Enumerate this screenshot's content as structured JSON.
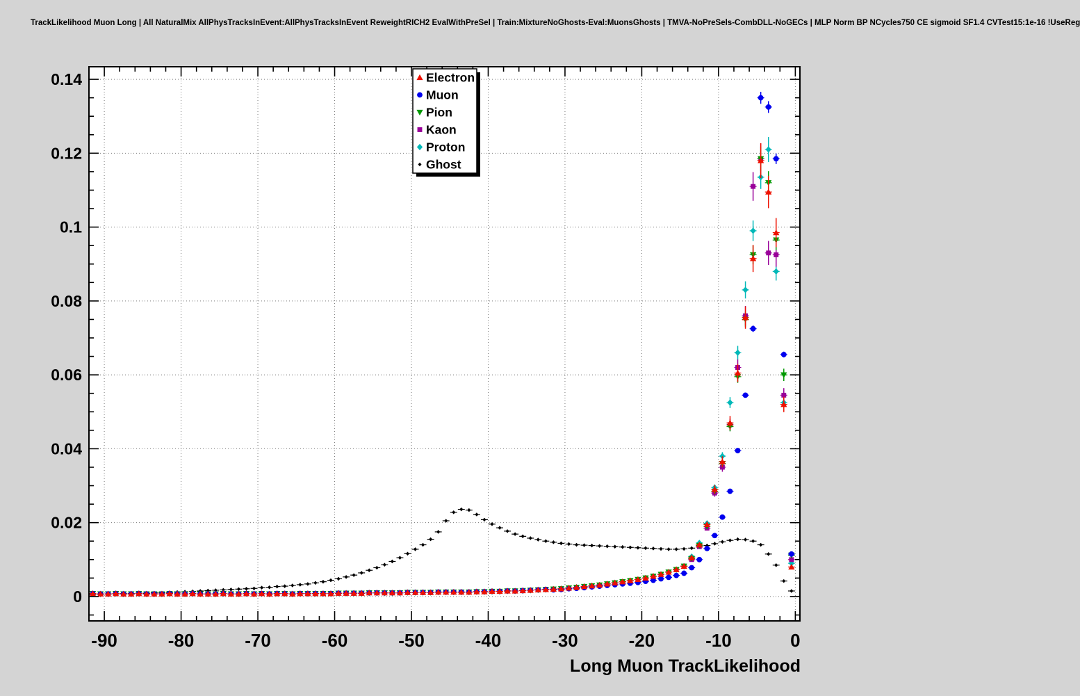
{
  "page": {
    "title": "TrackLikelihood Muon Long | All NaturalMix AllPhysTracksInEvent:AllPhysTracksInEvent ReweightRICH2 EvalWithPreSel | Train:MixtureNoGhosts-Eval:MuonsGhosts | TMVA-NoPreSels-CombDLL-NoGECs | MLP Norm BP NCycles750 CE sigmoid SF1.4 CVTest15:1e-16 !UseReg",
    "background": "#d4d4d4"
  },
  "chart_data": {
    "type": "scatter",
    "title": "TrackLikelihood Muon Long | All NaturalMix AllPhysTracksInEvent:AllPhysTracksInEvent ReweightRICH2 EvalWithPreSel | Train:MixtureNoGhosts-Eval:MuonsGhosts | TMVA-NoPreSels-CombDLL-NoGECs | MLP Norm BP NCycles750 CE sigmoid SF1.4 CVTest15:1e-16 !UseReg",
    "xlabel": "Long Muon TrackLikelihood",
    "ylabel": "",
    "xlim": [
      -92,
      0.6
    ],
    "ylim": [
      -0.0066,
      0.1434
    ],
    "grid": true,
    "legend_position": "top-center",
    "x_ticks": [
      -90,
      -80,
      -70,
      -60,
      -50,
      -40,
      -30,
      -20,
      -10,
      0
    ],
    "x_tick_labels": [
      "-90",
      "-80",
      "-70",
      "-60",
      "-50",
      "-40",
      "-30",
      "-20",
      "-10",
      "0"
    ],
    "y_ticks": [
      0,
      0.02,
      0.04,
      0.06,
      0.08,
      0.1,
      0.12,
      0.14
    ],
    "y_tick_labels": [
      "0",
      "0.02",
      "0.04",
      "0.06",
      "0.08",
      "0.1",
      "0.12",
      "0.14"
    ],
    "x_minor_step": 2,
    "y_minor_step": 0.005,
    "x_start": -91.5,
    "x_step": 1,
    "bin_half_width": 0.45,
    "error_model": {
      "min": 0.0002
    },
    "series": [
      {
        "name": "Electron",
        "marker": "triangle-up",
        "color": "#ee1100",
        "err_rel": 0.04,
        "values": [
          0.0008,
          0.0007,
          0.0007,
          0.0008,
          0.0007,
          0.0007,
          0.0008,
          0.0007,
          0.0007,
          0.0007,
          0.0008,
          0.0007,
          0.0007,
          0.0008,
          0.0007,
          0.0007,
          0.0007,
          0.0008,
          0.0007,
          0.0007,
          0.0008,
          0.0007,
          0.0008,
          0.0007,
          0.0008,
          0.0008,
          0.0007,
          0.0008,
          0.0008,
          0.0008,
          0.0008,
          0.0008,
          0.0009,
          0.0009,
          0.0009,
          0.0009,
          0.001,
          0.001,
          0.001,
          0.001,
          0.001,
          0.0011,
          0.0011,
          0.0011,
          0.0011,
          0.0012,
          0.0012,
          0.0012,
          0.0012,
          0.0012,
          0.0013,
          0.0013,
          0.0014,
          0.0014,
          0.0015,
          0.0015,
          0.0016,
          0.0017,
          0.0018,
          0.0019,
          0.002,
          0.0021,
          0.0023,
          0.0025,
          0.0027,
          0.0029,
          0.0031,
          0.0034,
          0.0037,
          0.004,
          0.0043,
          0.0046,
          0.005,
          0.0055,
          0.006,
          0.0066,
          0.0073,
          0.0082,
          0.0105,
          0.014,
          0.0195,
          0.029,
          0.0365,
          0.047,
          0.0605,
          0.0755,
          0.0915,
          0.118,
          0.1095,
          0.0985,
          0.052,
          0.008
        ]
      },
      {
        "name": "Muon",
        "marker": "circle",
        "color": "#0000ee",
        "err_rel": 0.012,
        "values": [
          0.0008,
          0.0007,
          0.0007,
          0.0008,
          0.0007,
          0.0007,
          0.0008,
          0.0007,
          0.0007,
          0.0007,
          0.0008,
          0.0007,
          0.0007,
          0.0008,
          0.0007,
          0.0007,
          0.0007,
          0.0008,
          0.0007,
          0.0007,
          0.0008,
          0.0007,
          0.0008,
          0.0007,
          0.0008,
          0.0008,
          0.0007,
          0.0008,
          0.0008,
          0.0008,
          0.0008,
          0.0008,
          0.0009,
          0.0009,
          0.0009,
          0.0009,
          0.001,
          0.001,
          0.001,
          0.001,
          0.001,
          0.0011,
          0.0011,
          0.0011,
          0.0011,
          0.0012,
          0.0012,
          0.0012,
          0.0012,
          0.0012,
          0.0013,
          0.0013,
          0.0014,
          0.0014,
          0.0015,
          0.0015,
          0.0016,
          0.0017,
          0.0018,
          0.0019,
          0.0018,
          0.0019,
          0.0021,
          0.0022,
          0.0024,
          0.0026,
          0.0028,
          0.003,
          0.0032,
          0.0034,
          0.0036,
          0.0038,
          0.0041,
          0.0044,
          0.0048,
          0.0052,
          0.0057,
          0.0063,
          0.0078,
          0.01,
          0.013,
          0.0165,
          0.0215,
          0.0285,
          0.0395,
          0.0545,
          0.0725,
          0.135,
          0.1325,
          0.1185,
          0.0655,
          0.0115
        ]
      },
      {
        "name": "Pion",
        "marker": "triangle-down",
        "color": "#009900",
        "err_rel": 0.028,
        "values": [
          0.0008,
          0.0007,
          0.0007,
          0.0008,
          0.0007,
          0.0007,
          0.0008,
          0.0007,
          0.0007,
          0.0007,
          0.0008,
          0.0007,
          0.0007,
          0.0008,
          0.0007,
          0.0007,
          0.0007,
          0.0008,
          0.0007,
          0.0007,
          0.0008,
          0.0007,
          0.0008,
          0.0007,
          0.0008,
          0.0008,
          0.0007,
          0.0008,
          0.0008,
          0.0008,
          0.0008,
          0.0008,
          0.0009,
          0.0009,
          0.0009,
          0.0009,
          0.001,
          0.001,
          0.001,
          0.001,
          0.001,
          0.0011,
          0.0011,
          0.0011,
          0.0011,
          0.0012,
          0.0012,
          0.0012,
          0.0012,
          0.0012,
          0.0013,
          0.0013,
          0.0014,
          0.0014,
          0.0015,
          0.0015,
          0.0016,
          0.0017,
          0.0018,
          0.0019,
          0.002,
          0.0021,
          0.0023,
          0.0025,
          0.0027,
          0.0029,
          0.0031,
          0.0034,
          0.0037,
          0.004,
          0.0043,
          0.0046,
          0.005,
          0.0055,
          0.006,
          0.0066,
          0.0073,
          0.0082,
          0.0103,
          0.0138,
          0.019,
          0.0285,
          0.036,
          0.046,
          0.0595,
          0.075,
          0.0925,
          0.1185,
          0.112,
          0.0965,
          0.06,
          0.0112
        ]
      },
      {
        "name": "Kaon",
        "marker": "square",
        "color": "#990099",
        "err_rel": 0.035,
        "values": [
          0.0008,
          0.0007,
          0.0007,
          0.0008,
          0.0007,
          0.0007,
          0.0008,
          0.0007,
          0.0007,
          0.0007,
          0.0008,
          0.0007,
          0.0007,
          0.0008,
          0.0007,
          0.0007,
          0.0007,
          0.0008,
          0.0007,
          0.0007,
          0.0008,
          0.0007,
          0.0008,
          0.0007,
          0.0008,
          0.0008,
          0.0007,
          0.0008,
          0.0008,
          0.0008,
          0.0008,
          0.0008,
          0.0009,
          0.0009,
          0.0009,
          0.0009,
          0.001,
          0.001,
          0.001,
          0.001,
          0.001,
          0.0011,
          0.0011,
          0.0011,
          0.0011,
          0.0012,
          0.0012,
          0.0012,
          0.0012,
          0.0012,
          0.0013,
          0.0013,
          0.0014,
          0.0014,
          0.0015,
          0.0015,
          0.0016,
          0.0017,
          0.0018,
          0.0019,
          0.002,
          0.0021,
          0.0023,
          0.0025,
          0.0027,
          0.0029,
          0.0031,
          0.0034,
          0.0037,
          0.004,
          0.0043,
          0.0046,
          0.005,
          0.0055,
          0.006,
          0.0066,
          0.0073,
          0.0082,
          0.01,
          0.0135,
          0.0185,
          0.028,
          0.035,
          0.0465,
          0.062,
          0.076,
          0.111,
          0.1185,
          0.093,
          0.0925,
          0.0545,
          0.01
        ]
      },
      {
        "name": "Proton",
        "marker": "diamond",
        "color": "#00b8b8",
        "err_rel": 0.028,
        "values": [
          0.0008,
          0.0007,
          0.0007,
          0.0008,
          0.0007,
          0.0007,
          0.0008,
          0.0007,
          0.0007,
          0.0007,
          0.0008,
          0.0007,
          0.0007,
          0.0008,
          0.0007,
          0.0007,
          0.0007,
          0.0008,
          0.0007,
          0.0007,
          0.0008,
          0.0007,
          0.0008,
          0.0007,
          0.0008,
          0.0008,
          0.0007,
          0.0008,
          0.0008,
          0.0008,
          0.0008,
          0.0008,
          0.0009,
          0.0009,
          0.0009,
          0.0009,
          0.001,
          0.001,
          0.001,
          0.001,
          0.001,
          0.0011,
          0.0011,
          0.0011,
          0.0011,
          0.0012,
          0.0012,
          0.0012,
          0.0012,
          0.0012,
          0.0013,
          0.0013,
          0.0014,
          0.0014,
          0.0015,
          0.0015,
          0.0016,
          0.0017,
          0.0018,
          0.0019,
          0.002,
          0.0021,
          0.0023,
          0.0025,
          0.0027,
          0.0029,
          0.0031,
          0.0034,
          0.0037,
          0.004,
          0.0043,
          0.0046,
          0.005,
          0.0055,
          0.006,
          0.0066,
          0.0073,
          0.0082,
          0.0108,
          0.0145,
          0.0198,
          0.0295,
          0.038,
          0.0525,
          0.066,
          0.083,
          0.099,
          0.1135,
          0.121,
          0.088,
          0.0525,
          0.009
        ]
      },
      {
        "name": "Ghost",
        "marker": "small-diamond",
        "color": "#000000",
        "err_rel": 0.01,
        "values": [
          0.0006,
          0.0006,
          0.0007,
          0.0007,
          0.0008,
          0.0008,
          0.0009,
          0.0009,
          0.001,
          0.001,
          0.0011,
          0.0012,
          0.0013,
          0.0014,
          0.0015,
          0.0016,
          0.0017,
          0.0018,
          0.0019,
          0.002,
          0.0021,
          0.0022,
          0.0024,
          0.0025,
          0.0027,
          0.0028,
          0.003,
          0.0032,
          0.0034,
          0.0037,
          0.004,
          0.0044,
          0.0048,
          0.0053,
          0.0058,
          0.0064,
          0.0071,
          0.0078,
          0.0086,
          0.0095,
          0.0105,
          0.0116,
          0.0128,
          0.014,
          0.0155,
          0.0175,
          0.0205,
          0.0228,
          0.0236,
          0.0234,
          0.0222,
          0.0208,
          0.0196,
          0.0186,
          0.0177,
          0.0169,
          0.0163,
          0.0158,
          0.0154,
          0.015,
          0.0147,
          0.0144,
          0.0142,
          0.014,
          0.0139,
          0.0138,
          0.0137,
          0.0136,
          0.0135,
          0.0134,
          0.0133,
          0.0132,
          0.0131,
          0.013,
          0.0129,
          0.0128,
          0.0128,
          0.0129,
          0.0131,
          0.0134,
          0.0138,
          0.0143,
          0.0148,
          0.0152,
          0.0155,
          0.0154,
          0.015,
          0.014,
          0.0115,
          0.0085,
          0.0042,
          0.0015
        ]
      }
    ]
  }
}
